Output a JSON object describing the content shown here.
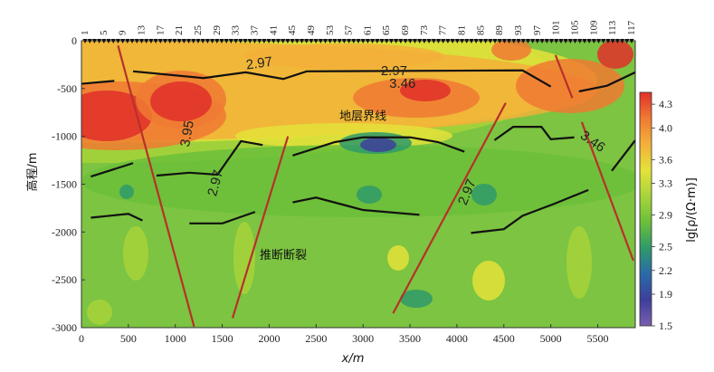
{
  "chart_data": {
    "type": "heatmap",
    "title": "",
    "xlabel": "x/m",
    "ylabel": "高程/m",
    "xlim": [
      0,
      5900
    ],
    "ylim": [
      -3000,
      0
    ],
    "x_ticks": [
      0,
      500,
      1000,
      1500,
      2000,
      2500,
      3000,
      3500,
      4000,
      4500,
      5000,
      5500
    ],
    "y_ticks": [
      0,
      -500,
      -1000,
      -1500,
      -2000,
      -2500,
      -3000
    ],
    "station_labels": [
      "1",
      "5",
      "9",
      "13",
      "17",
      "21",
      "25",
      "29",
      "33",
      "37",
      "41",
      "45",
      "49",
      "53",
      "57",
      "61",
      "65",
      "69",
      "73",
      "77",
      "81",
      "85",
      "89",
      "93",
      "97",
      "101",
      "105",
      "109",
      "113",
      "117"
    ],
    "colorbar": {
      "label": "lg[ρ/(Ω·m)]",
      "min": 1.5,
      "max": 4.45,
      "ticks": [
        1.5,
        1.9,
        2.2,
        2.5,
        2.9,
        3.3,
        3.6,
        4.0,
        4.3
      ],
      "colors": [
        "#7a5fb0",
        "#3d3f9a",
        "#2a6aa8",
        "#2f9a6a",
        "#6cbf3a",
        "#a8d43a",
        "#e4e23a",
        "#f3b03a",
        "#f07a32",
        "#e0302a"
      ]
    },
    "annotations": [
      {
        "text": "2.97",
        "x": 1900,
        "y": -280,
        "rotate": -8
      },
      {
        "text": "2.97",
        "x": 3330,
        "y": -360,
        "rotate": 0
      },
      {
        "text": "3.46",
        "x": 3420,
        "y": -490,
        "rotate": 0
      },
      {
        "text": "3.95",
        "x": 1170,
        "y": -980,
        "rotate": -80
      },
      {
        "text": "2.97",
        "x": 1470,
        "y": -1500,
        "rotate": -75
      },
      {
        "text": "2.97",
        "x": 4150,
        "y": -1600,
        "rotate": -68
      },
      {
        "text": "3.46",
        "x": 5420,
        "y": -1090,
        "rotate": 35
      },
      {
        "text": "地层界线",
        "x": 3000,
        "y": -830,
        "rotate": 0
      },
      {
        "text": "推断断裂",
        "x": 2150,
        "y": -2280,
        "rotate": 0
      }
    ],
    "stratum_boundaries": [
      [
        [
          0,
          -450
        ],
        [
          350,
          -420
        ]
      ],
      [
        [
          550,
          -320
        ],
        [
          1300,
          -390
        ],
        [
          1750,
          -330
        ],
        [
          2150,
          -400
        ],
        [
          2400,
          -320
        ],
        [
          4700,
          -310
        ],
        [
          5000,
          -480
        ]
      ],
      [
        [
          5300,
          -530
        ],
        [
          5600,
          -470
        ],
        [
          5900,
          -330
        ]
      ],
      [
        [
          100,
          -1420
        ],
        [
          550,
          -1280
        ]
      ],
      [
        [
          800,
          -1410
        ],
        [
          1150,
          -1380
        ],
        [
          1450,
          -1400
        ],
        [
          1700,
          -1050
        ],
        [
          1930,
          -1090
        ]
      ],
      [
        [
          2250,
          -1200
        ],
        [
          2700,
          -1060
        ],
        [
          3000,
          -1010
        ],
        [
          3500,
          -1010
        ],
        [
          3800,
          -1060
        ],
        [
          4080,
          -1160
        ]
      ],
      [
        [
          4400,
          -1040
        ],
        [
          4600,
          -900
        ],
        [
          4900,
          -900
        ],
        [
          5000,
          -1030
        ],
        [
          5250,
          -1010
        ]
      ],
      [
        [
          5650,
          -1360
        ],
        [
          5900,
          -1040
        ]
      ],
      [
        [
          100,
          -1850
        ],
        [
          500,
          -1810
        ],
        [
          650,
          -1880
        ]
      ],
      [
        [
          1150,
          -1910
        ],
        [
          1500,
          -1910
        ],
        [
          1850,
          -1790
        ]
      ],
      [
        [
          2250,
          -1690
        ],
        [
          2500,
          -1640
        ],
        [
          3000,
          -1770
        ],
        [
          3600,
          -1820
        ]
      ],
      [
        [
          4150,
          -2010
        ],
        [
          4500,
          -1970
        ],
        [
          4700,
          -1830
        ],
        [
          5050,
          -1700
        ],
        [
          5400,
          -1560
        ]
      ]
    ],
    "faults": [
      [
        [
          390,
          -50
        ],
        [
          1200,
          -2990
        ]
      ],
      [
        [
          1610,
          -2900
        ],
        [
          2200,
          -1000
        ]
      ],
      [
        [
          3320,
          -2850
        ],
        [
          4520,
          -650
        ]
      ],
      [
        [
          5050,
          -150
        ],
        [
          5230,
          -600
        ]
      ],
      [
        [
          5330,
          -850
        ],
        [
          5880,
          -2300
        ]
      ]
    ]
  }
}
